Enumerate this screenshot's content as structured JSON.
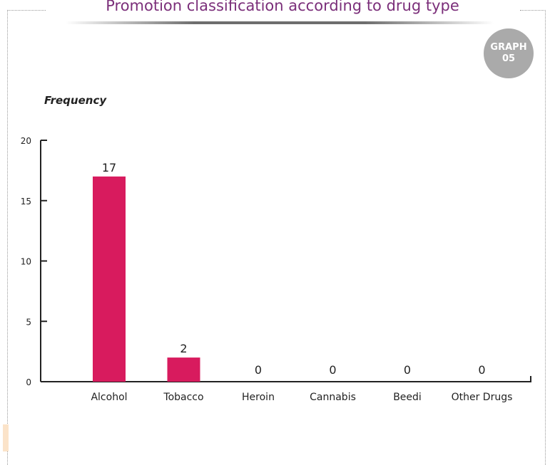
{
  "title": "Promotion classification according to drug type",
  "badge": {
    "line1": "GRAPH",
    "line2": "05"
  },
  "colors": {
    "bar": "#d81b5e",
    "title": "#7b2f7a",
    "badge": "#aaaaaa"
  },
  "chart_data": {
    "type": "bar",
    "title": "Promotion classification according to drug type",
    "xlabel": "",
    "ylabel": "Frequency",
    "categories": [
      "Alcohol",
      "Tobacco",
      "Heroin",
      "Cannabis",
      "Beedi",
      "Other Drugs"
    ],
    "values": [
      17,
      2,
      0,
      0,
      0,
      0
    ],
    "yticks": [
      0,
      5,
      10,
      15,
      20
    ],
    "ylim": [
      0,
      20
    ],
    "grid": false,
    "legend": "none",
    "data_labels": true
  }
}
